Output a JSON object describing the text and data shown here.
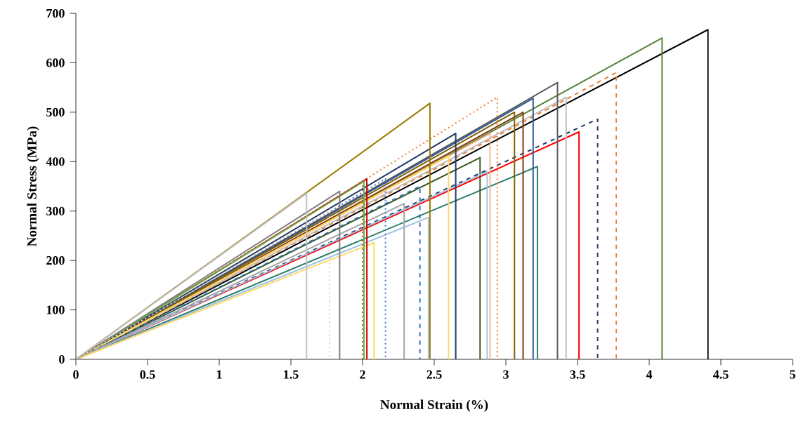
{
  "chart_data": {
    "type": "line",
    "xlabel": "Normal Strain (%)",
    "ylabel": "Normal Stress (MPa)",
    "xlim": [
      0,
      5
    ],
    "ylim": [
      0,
      700
    ],
    "xticks": [
      0,
      0.5,
      1,
      1.5,
      2,
      2.5,
      3,
      3.5,
      4,
      4.5,
      5
    ],
    "yticks": [
      0,
      100,
      200,
      300,
      400,
      500,
      600,
      700
    ],
    "grid": false,
    "marker": "none",
    "series": [
      {
        "color": "#000000",
        "line_style": "solid",
        "x": [
          0,
          4.41,
          4.41
        ],
        "values": [
          0,
          667,
          0
        ]
      },
      {
        "color": "#548235",
        "line_style": "solid",
        "x": [
          0,
          4.09,
          4.09
        ],
        "values": [
          0,
          650,
          0
        ]
      },
      {
        "color": "#ed7d31",
        "line_style": "dashed",
        "x": [
          0,
          3.77,
          3.77
        ],
        "values": [
          0,
          580,
          0
        ]
      },
      {
        "color": "#203864",
        "line_style": "dashed",
        "x": [
          0,
          3.64,
          3.64
        ],
        "values": [
          0,
          486,
          0
        ]
      },
      {
        "color": "#ff0000",
        "line_style": "solid",
        "x": [
          0,
          3.51,
          3.51
        ],
        "values": [
          0,
          460,
          0
        ]
      },
      {
        "color": "#bfbfbf",
        "line_style": "solid",
        "x": [
          0,
          3.42,
          3.42
        ],
        "values": [
          0,
          530,
          0
        ]
      },
      {
        "color": "#595959",
        "line_style": "solid",
        "x": [
          0,
          3.36,
          3.36
        ],
        "values": [
          0,
          560,
          0
        ]
      },
      {
        "color": "#2e7d6b",
        "line_style": "solid",
        "x": [
          0,
          3.22,
          3.22
        ],
        "values": [
          0,
          390,
          0
        ]
      },
      {
        "color": "#2f5597",
        "line_style": "solid",
        "x": [
          0,
          3.19,
          3.19
        ],
        "values": [
          0,
          528,
          0
        ]
      },
      {
        "color": "#843c0c",
        "line_style": "solid",
        "x": [
          0,
          3.12,
          3.12
        ],
        "values": [
          0,
          500,
          0
        ]
      },
      {
        "color": "#7f6000",
        "line_style": "solid",
        "x": [
          0,
          3.06,
          3.06
        ],
        "values": [
          0,
          500,
          0
        ]
      },
      {
        "color": "#ed7d31",
        "line_style": "dotted",
        "x": [
          0,
          2.94,
          2.94
        ],
        "values": [
          0,
          530,
          0
        ]
      },
      {
        "color": "#f4b183",
        "line_style": "solid",
        "x": [
          0,
          2.89,
          2.89
        ],
        "values": [
          0,
          457,
          0
        ]
      },
      {
        "color": "#375623",
        "line_style": "solid",
        "x": [
          0,
          2.82,
          2.82
        ],
        "values": [
          0,
          408,
          0
        ]
      },
      {
        "color": "#9dc3e6",
        "line_style": "solid",
        "x": [
          0,
          2.87,
          2.87
        ],
        "values": [
          0,
          380,
          0
        ]
      },
      {
        "color": "#1f3864",
        "line_style": "solid",
        "x": [
          0,
          2.65,
          2.65
        ],
        "values": [
          0,
          457,
          0
        ]
      },
      {
        "color": "#ffd966",
        "line_style": "solid",
        "x": [
          0,
          2.6,
          2.6
        ],
        "values": [
          0,
          412,
          0
        ]
      },
      {
        "color": "#9c7a00",
        "line_style": "solid",
        "x": [
          0,
          2.47,
          2.47
        ],
        "values": [
          0,
          518,
          0
        ]
      },
      {
        "color": "#9dc3e6",
        "line_style": "solid",
        "x": [
          0,
          2.46,
          2.46
        ],
        "values": [
          0,
          287,
          0
        ]
      },
      {
        "color": "#2e75b6",
        "line_style": "dashed",
        "x": [
          0,
          2.4,
          2.4
        ],
        "values": [
          0,
          350,
          0
        ]
      },
      {
        "color": "#a5a5a5",
        "line_style": "solid",
        "x": [
          0,
          2.29,
          2.29
        ],
        "values": [
          0,
          315,
          0
        ]
      },
      {
        "color": "#4472c4",
        "line_style": "dotted",
        "x": [
          0,
          2.16,
          2.16
        ],
        "values": [
          0,
          365,
          0
        ]
      },
      {
        "color": "#ffd966",
        "line_style": "solid",
        "x": [
          0,
          2.08,
          2.08
        ],
        "values": [
          0,
          236,
          0
        ]
      },
      {
        "color": "#c55a11",
        "line_style": "dotted",
        "x": [
          0,
          2.0,
          2.0
        ],
        "values": [
          0,
          360,
          0
        ]
      },
      {
        "color": "#c00000",
        "line_style": "solid",
        "x": [
          0,
          2.03,
          2.03
        ],
        "values": [
          0,
          365,
          0
        ]
      },
      {
        "color": "#70ad47",
        "line_style": "solid",
        "x": [
          0,
          2.01,
          2.01
        ],
        "values": [
          0,
          360,
          0
        ]
      },
      {
        "color": "#7f7f7f",
        "line_style": "solid",
        "x": [
          0,
          1.84,
          1.84
        ],
        "values": [
          0,
          340,
          0
        ]
      },
      {
        "color": "#f8cbad",
        "line_style": "dotted",
        "x": [
          0,
          1.77,
          1.77
        ],
        "values": [
          0,
          300,
          0
        ]
      },
      {
        "color": "#bfbfbf",
        "line_style": "solid",
        "x": [
          0,
          1.61,
          1.61
        ],
        "values": [
          0,
          336,
          0
        ]
      }
    ]
  }
}
